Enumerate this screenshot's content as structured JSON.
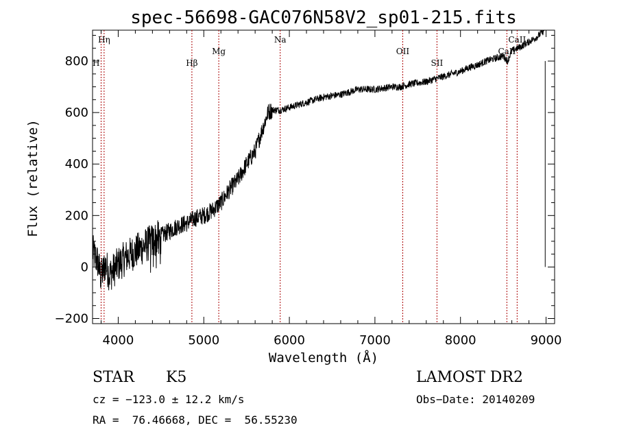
{
  "chart_data": {
    "type": "line",
    "title": "spec-56698-GAC076N58V2_sp01-215.fits",
    "xlabel": "Wavelength (Å)",
    "ylabel": "Flux (relative)",
    "xlim": [
      3700,
      9100
    ],
    "ylim": [
      -220,
      920
    ],
    "x_ticks": [
      4000,
      5000,
      6000,
      7000,
      8000,
      9000
    ],
    "x_tick_labels": [
      "4000",
      "5000",
      "6000",
      "7000",
      "8000",
      "9000"
    ],
    "y_ticks": [
      -200,
      0,
      200,
      400,
      600,
      800
    ],
    "y_tick_labels": [
      "−200",
      "0",
      "200",
      "400",
      "600",
      "800"
    ],
    "grid": false,
    "line_color": "#000000",
    "marker_color": "#aa0000",
    "series": [
      {
        "x": [
          3700,
          3760,
          3800,
          3850,
          3900,
          4000,
          4100,
          4200,
          4300,
          4400,
          4500,
          4600,
          4700,
          4800,
          4900,
          5000,
          5100,
          5200,
          5300,
          5400,
          5500,
          5600,
          5700,
          5750,
          5800,
          5900,
          6000,
          6100,
          6200,
          6300,
          6400,
          6500,
          6600,
          6700,
          6800,
          6900,
          7000,
          7100,
          7200,
          7300,
          7400,
          7500,
          7600,
          7700,
          7800,
          7900,
          8000,
          8100,
          8200,
          8300,
          8400,
          8500,
          8550,
          8600,
          8700,
          8800,
          8900,
          8980
        ],
        "y": [
          60,
          20,
          -40,
          10,
          -30,
          10,
          40,
          60,
          80,
          100,
          120,
          140,
          160,
          170,
          190,
          200,
          220,
          250,
          300,
          340,
          400,
          450,
          550,
          600,
          610,
          610,
          620,
          630,
          640,
          650,
          660,
          665,
          670,
          680,
          690,
          690,
          690,
          695,
          700,
          700,
          710,
          715,
          720,
          730,
          740,
          750,
          760,
          775,
          785,
          800,
          810,
          820,
          800,
          840,
          855,
          875,
          895,
          920
        ]
      }
    ],
    "line_markers": [
      {
        "label": "Hη",
        "x": 3835
      },
      {
        "label": "H",
        "x": 3800
      },
      {
        "label": "Hβ",
        "x": 4861
      },
      {
        "label": "Mg",
        "x": 5175
      },
      {
        "label": "Na",
        "x": 5893
      },
      {
        "label": "OII",
        "x": 7325
      },
      {
        "label": "SII",
        "x": 7725
      },
      {
        "label": "CaII",
        "x": 8542
      },
      {
        "label": "CaII",
        "x": 8662
      }
    ],
    "end_bar": {
      "x": 8990,
      "y_top": 800,
      "y_bottom": 0
    }
  },
  "info": {
    "object_type": "STAR",
    "subclass": "K5",
    "survey": "LAMOST DR2",
    "velocity": "cz = −123.0 ± 12.2 km/s",
    "obs_date": "Obs−Date: 20140209",
    "coords": "RA =  76.46668, DEC =  56.55230"
  }
}
